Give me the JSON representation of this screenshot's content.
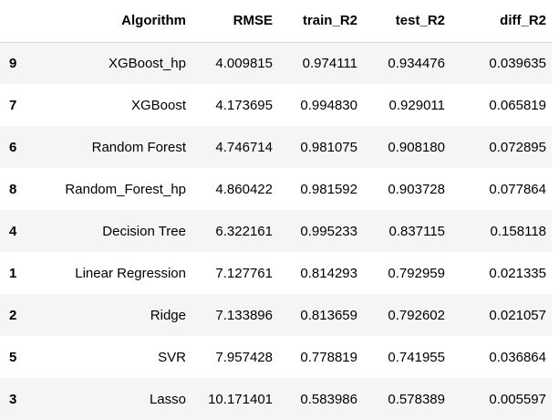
{
  "table": {
    "columns": [
      "",
      "Algorithm",
      "RMSE",
      "train_R2",
      "test_R2",
      "diff_R2"
    ],
    "rows": [
      {
        "index": "9",
        "algorithm": "XGBoost_hp",
        "rmse": "4.009815",
        "train_r2": "0.974111",
        "test_r2": "0.934476",
        "diff_r2": "0.039635"
      },
      {
        "index": "7",
        "algorithm": "XGBoost",
        "rmse": "4.173695",
        "train_r2": "0.994830",
        "test_r2": "0.929011",
        "diff_r2": "0.065819"
      },
      {
        "index": "6",
        "algorithm": "Random Forest",
        "rmse": "4.746714",
        "train_r2": "0.981075",
        "test_r2": "0.908180",
        "diff_r2": "0.072895"
      },
      {
        "index": "8",
        "algorithm": "Random_Forest_hp",
        "rmse": "4.860422",
        "train_r2": "0.981592",
        "test_r2": "0.903728",
        "diff_r2": "0.077864"
      },
      {
        "index": "4",
        "algorithm": "Decision Tree",
        "rmse": "6.322161",
        "train_r2": "0.995233",
        "test_r2": "0.837115",
        "diff_r2": "0.158118"
      },
      {
        "index": "1",
        "algorithm": "Linear Regression",
        "rmse": "7.127761",
        "train_r2": "0.814293",
        "test_r2": "0.792959",
        "diff_r2": "0.021335"
      },
      {
        "index": "2",
        "algorithm": "Ridge",
        "rmse": "7.133896",
        "train_r2": "0.813659",
        "test_r2": "0.792602",
        "diff_r2": "0.021057"
      },
      {
        "index": "5",
        "algorithm": "SVR",
        "rmse": "7.957428",
        "train_r2": "0.778819",
        "test_r2": "0.741955",
        "diff_r2": "0.036864"
      },
      {
        "index": "3",
        "algorithm": "Lasso",
        "rmse": "10.171401",
        "train_r2": "0.583986",
        "test_r2": "0.578389",
        "diff_r2": "0.005597"
      }
    ]
  },
  "colors": {
    "stripe_odd": "#f5f5f5",
    "stripe_even": "#ffffff",
    "header_rule": "#d6d6d6",
    "text": "#000000"
  }
}
